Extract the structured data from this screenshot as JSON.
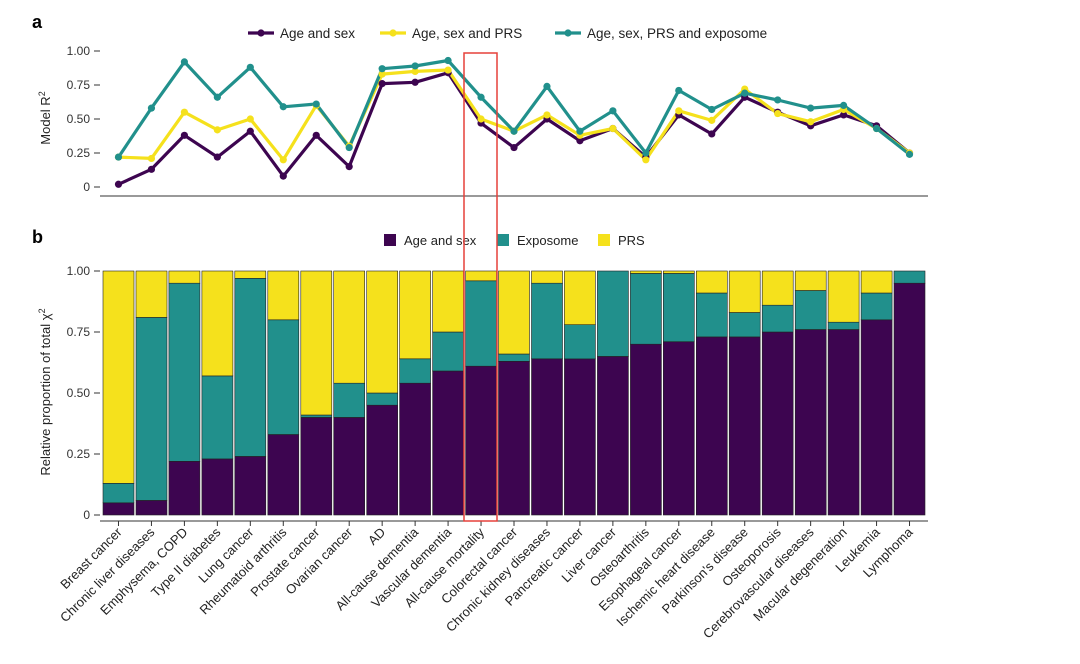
{
  "panel_labels": {
    "a": "a",
    "b": "b"
  },
  "chart_data": [
    {
      "type": "line",
      "panel": "a",
      "ylabel": "Model R",
      "ylabel_superscript": "2",
      "ylim": [
        0,
        1
      ],
      "yticks": [
        "0",
        "0.25",
        "0.50",
        "0.75",
        "1.00"
      ],
      "ytick_values": [
        0,
        0.25,
        0.5,
        0.75,
        1.0
      ],
      "legend_position": "top-center",
      "highlight_category_index": 11,
      "series": [
        {
          "name": "Age and sex",
          "color": "#3d0550",
          "values": [
            0.02,
            0.13,
            0.38,
            0.22,
            0.41,
            0.08,
            0.38,
            0.15,
            0.76,
            0.77,
            0.84,
            0.47,
            0.29,
            0.5,
            0.34,
            0.43,
            0.22,
            0.53,
            0.39,
            0.66,
            0.55,
            0.45,
            0.53,
            0.45,
            0.25
          ]
        },
        {
          "name": "Age, sex and PRS",
          "color": "#f5e11c",
          "values": [
            0.22,
            0.21,
            0.55,
            0.42,
            0.5,
            0.2,
            0.6,
            0.3,
            0.83,
            0.85,
            0.86,
            0.5,
            0.41,
            0.53,
            0.38,
            0.43,
            0.2,
            0.56,
            0.49,
            0.72,
            0.54,
            0.48,
            0.57,
            0.43,
            0.25
          ]
        },
        {
          "name": "Age, sex, PRS and exposome",
          "color": "#21908c",
          "values": [
            0.22,
            0.58,
            0.92,
            0.66,
            0.88,
            0.59,
            0.61,
            0.29,
            0.87,
            0.89,
            0.93,
            0.66,
            0.41,
            0.74,
            0.41,
            0.56,
            0.25,
            0.71,
            0.57,
            0.69,
            0.64,
            0.58,
            0.6,
            0.43,
            0.24
          ]
        }
      ]
    },
    {
      "type": "bar",
      "stacked": true,
      "panel": "b",
      "ylabel": "Relative proportion of total χ",
      "ylabel_superscript": "2",
      "ylim": [
        0,
        1
      ],
      "yticks": [
        "0",
        "0.25",
        "0.50",
        "0.75",
        "1.00"
      ],
      "ytick_values": [
        0,
        0.25,
        0.5,
        0.75,
        1.0
      ],
      "legend_position": "top-center",
      "highlight_category_index": 11,
      "categories": [
        "Breast cancer",
        "Chronic liver diseases",
        "Emphysema, COPD",
        "Type II diabetes",
        "Lung cancer",
        "Rheumatoid arthritis",
        "Prostate cancer",
        "Ovarian cancer",
        "AD",
        "All-cause dementia",
        "Vascular dementia",
        "All-cause mortality",
        "Colorectal cancer",
        "Chronic kidney diseases",
        "Pancreatic cancer",
        "Liver cancer",
        "Osteoarthritis",
        "Esophageal cancer",
        "Ischemic heart disease",
        "Parkinson's disease",
        "Osteoporosis",
        "Cerebrovascular diseases",
        "Macular degeneration",
        "Leukemia",
        "Lymphoma"
      ],
      "series": [
        {
          "name": "Age and sex",
          "color": "#3d0550",
          "values": [
            0.05,
            0.06,
            0.22,
            0.23,
            0.24,
            0.33,
            0.4,
            0.4,
            0.45,
            0.54,
            0.59,
            0.61,
            0.63,
            0.64,
            0.64,
            0.65,
            0.7,
            0.71,
            0.73,
            0.73,
            0.75,
            0.76,
            0.76,
            0.8,
            0.95
          ]
        },
        {
          "name": "Exposome",
          "color": "#21908c",
          "values": [
            0.08,
            0.75,
            0.73,
            0.34,
            0.73,
            0.47,
            0.01,
            0.14,
            0.05,
            0.1,
            0.16,
            0.35,
            0.03,
            0.31,
            0.14,
            0.35,
            0.29,
            0.28,
            0.18,
            0.1,
            0.11,
            0.16,
            0.03,
            0.11,
            0.05
          ]
        },
        {
          "name": "PRS",
          "color": "#f5e11c",
          "values": [
            0.87,
            0.19,
            0.05,
            0.43,
            0.03,
            0.2,
            0.59,
            0.46,
            0.5,
            0.36,
            0.25,
            0.04,
            0.34,
            0.05,
            0.22,
            0.0,
            0.01,
            0.01,
            0.09,
            0.17,
            0.14,
            0.08,
            0.21,
            0.09,
            0.0
          ]
        }
      ]
    }
  ]
}
